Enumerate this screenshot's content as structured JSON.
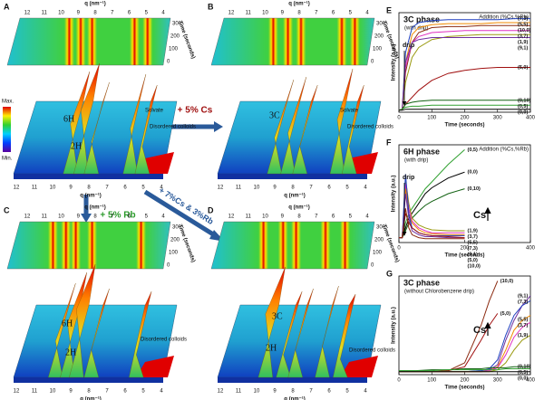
{
  "surface_panels": [
    {
      "label": "A",
      "x_label": "q (nm⁻¹)",
      "x_ticks": [
        "12",
        "11",
        "10",
        "9",
        "8",
        "7",
        "6",
        "5",
        "4"
      ],
      "time_label": "Time (seconds)",
      "time_ticks": [
        "300",
        "200",
        "100",
        "0"
      ],
      "annotations": [
        "6H",
        "2H",
        "Solvate",
        "Disordered colloids"
      ]
    },
    {
      "label": "B",
      "x_label": "q (nm⁻¹)",
      "x_ticks": [
        "12",
        "11",
        "10",
        "9",
        "8",
        "7",
        "6",
        "5",
        "4"
      ],
      "time_label": "Time (seconds)",
      "time_ticks": [
        "300",
        "200",
        "100",
        "0"
      ],
      "annotations": [
        "3C",
        "Solvate",
        "Disordered colloids"
      ]
    },
    {
      "label": "C",
      "x_label": "q (nm⁻¹)",
      "x_ticks": [
        "12",
        "11",
        "10",
        "9",
        "8",
        "7",
        "6",
        "5",
        "4"
      ],
      "time_label": "Time (seconds)",
      "time_ticks": [
        "300",
        "200",
        "100",
        "0"
      ],
      "annotations": [
        "6H",
        "2H",
        "Disordered colloids"
      ]
    },
    {
      "label": "D",
      "x_label": "q (nm⁻¹)",
      "x_ticks": [
        "12",
        "11",
        "10",
        "9",
        "8",
        "7",
        "6",
        "5",
        "4"
      ],
      "time_label": "Time (seconds)",
      "time_ticks": [
        "300",
        "200",
        "100",
        "0"
      ],
      "annotations": [
        "3C",
        "2H",
        "Disordered colloids"
      ]
    }
  ],
  "colorbar": {
    "max": "Max.",
    "min": "Min."
  },
  "transitions": [
    "+ 5% Cs",
    "+ 5% Rb",
    "+ 7%Cs & 3%Rb"
  ],
  "line_charts": [
    {
      "type": "line",
      "label": "E",
      "title": "3C phase",
      "subtitle": "(with drip)",
      "legend_title": "Addition (%Cs,%Rb)",
      "annotation": "drip",
      "x_label": "Time (seconds)",
      "y_label": "Intensity (a.u.)",
      "xlim": [
        0,
        400
      ],
      "xticks": [
        0,
        100,
        200,
        300,
        400
      ],
      "ylim": [
        0,
        1
      ],
      "x": [
        0,
        10,
        20,
        40,
        60,
        100,
        150,
        200,
        250,
        300,
        350,
        400
      ],
      "series": [
        {
          "name": "(7,3)",
          "color": "#1f3fbf",
          "values": [
            0.02,
            0.03,
            0.6,
            0.85,
            0.9,
            0.92,
            0.93,
            0.93,
            0.93,
            0.93,
            0.94,
            0.94
          ]
        },
        {
          "name": "(5,5)",
          "color": "#f08a00",
          "values": [
            0.02,
            0.03,
            0.5,
            0.78,
            0.85,
            0.88,
            0.89,
            0.89,
            0.89,
            0.9,
            0.9,
            0.9
          ]
        },
        {
          "name": "(10,0)",
          "color": "#8b2a10",
          "values": [
            0.02,
            0.03,
            0.4,
            0.7,
            0.8,
            0.85,
            0.86,
            0.86,
            0.87,
            0.87,
            0.87,
            0.87
          ]
        },
        {
          "name": "(3,7)",
          "color": "#e030c0",
          "values": [
            0.02,
            0.03,
            0.45,
            0.7,
            0.76,
            0.8,
            0.81,
            0.82,
            0.82,
            0.82,
            0.82,
            0.82
          ]
        },
        {
          "name": "(1,9)",
          "color": "#9a9a10",
          "values": [
            0.02,
            0.03,
            0.3,
            0.55,
            0.65,
            0.73,
            0.76,
            0.77,
            0.78,
            0.78,
            0.78,
            0.78
          ]
        },
        {
          "name": "(9,1)",
          "color": "#7030a0",
          "values": [
            0.02,
            0.03,
            0.5,
            0.7,
            0.73,
            0.75,
            0.75,
            0.75,
            0.75,
            0.75,
            0.75,
            0.75
          ]
        },
        {
          "name": "(5,0)",
          "color": "#a01010",
          "values": [
            0.02,
            0.03,
            0.08,
            0.15,
            0.22,
            0.32,
            0.39,
            0.42,
            0.44,
            0.45,
            0.45,
            0.45
          ]
        },
        {
          "name": "(0,10)",
          "color": "#106010",
          "values": [
            0.02,
            0.03,
            0.08,
            0.1,
            0.11,
            0.12,
            0.12,
            0.12,
            0.12,
            0.12,
            0.12,
            0.12
          ]
        },
        {
          "name": "(0,5)",
          "color": "#30a030",
          "values": [
            0.02,
            0.03,
            0.05,
            0.06,
            0.06,
            0.07,
            0.07,
            0.07,
            0.07,
            0.07,
            0.07,
            0.07
          ]
        },
        {
          "name": "(0,0)",
          "color": "#000000",
          "values": [
            0.02,
            0.02,
            0.03,
            0.03,
            0.03,
            0.03,
            0.03,
            0.03,
            0.03,
            0.03,
            0.03,
            0.03
          ]
        }
      ]
    },
    {
      "type": "line",
      "label": "F",
      "title": "6H phase",
      "subtitle": "(with drip)",
      "legend_title": "Addition (%Cs,%Rb)",
      "annotation": "drip",
      "arrow_label": "Cs",
      "x_label": "Time (seconds)",
      "y_label": "Intensity (a.u.)",
      "xlim": [
        0,
        400
      ],
      "xticks": [
        0,
        200,
        400
      ],
      "ylim": [
        0,
        1
      ],
      "x": [
        0,
        10,
        20,
        30,
        40,
        60,
        80,
        100,
        150,
        200
      ],
      "series": [
        {
          "name": "(0,5)",
          "color": "#30a030",
          "values": [
            0.05,
            0.05,
            0.2,
            0.3,
            0.35,
            0.45,
            0.55,
            0.62,
            0.8,
            0.95
          ]
        },
        {
          "name": "(0,0)",
          "color": "#000000",
          "values": [
            0.05,
            0.05,
            0.15,
            0.25,
            0.3,
            0.4,
            0.5,
            0.56,
            0.66,
            0.72
          ]
        },
        {
          "name": "(0,10)",
          "color": "#106010",
          "values": [
            0.05,
            0.05,
            0.12,
            0.2,
            0.25,
            0.32,
            0.38,
            0.42,
            0.5,
            0.55
          ]
        },
        {
          "name": "(1,9)",
          "color": "#9a9a10",
          "values": [
            0.05,
            0.05,
            0.65,
            0.4,
            0.25,
            0.18,
            0.15,
            0.13,
            0.12,
            0.12
          ]
        },
        {
          "name": "(3,7)",
          "color": "#e030c0",
          "values": [
            0.05,
            0.05,
            0.6,
            0.35,
            0.22,
            0.15,
            0.12,
            0.1,
            0.1,
            0.1
          ]
        },
        {
          "name": "(5,5)",
          "color": "#f08a00",
          "values": [
            0.05,
            0.05,
            0.55,
            0.3,
            0.2,
            0.13,
            0.1,
            0.09,
            0.08,
            0.08
          ]
        },
        {
          "name": "(7,3)",
          "color": "#1f3fbf",
          "values": [
            0.05,
            0.05,
            0.7,
            0.3,
            0.15,
            0.1,
            0.08,
            0.07,
            0.07,
            0.07
          ]
        },
        {
          "name": "(9,1)",
          "color": "#7030a0",
          "values": [
            0.05,
            0.05,
            0.5,
            0.25,
            0.12,
            0.08,
            0.06,
            0.06,
            0.05,
            0.05
          ]
        },
        {
          "name": "(5,0)",
          "color": "#a01010",
          "values": [
            0.05,
            0.05,
            0.3,
            0.2,
            0.15,
            0.1,
            0.08,
            0.07,
            0.06,
            0.05
          ]
        },
        {
          "name": "(10,0)",
          "color": "#8b2a10",
          "values": [
            0.05,
            0.05,
            0.35,
            0.15,
            0.08,
            0.05,
            0.04,
            0.04,
            0.04,
            0.04
          ]
        }
      ]
    },
    {
      "type": "line",
      "label": "G",
      "title": "3C phase",
      "subtitle": "(without Chlorobenzene drip)",
      "arrow_label": "Cs",
      "x_label": "Time (seconds)",
      "y_label": "Intensity (a.u.)",
      "xlim": [
        0,
        400
      ],
      "xticks": [
        0,
        100,
        200,
        300,
        400
      ],
      "ylim": [
        0,
        1
      ],
      "x": [
        0,
        50,
        100,
        150,
        200,
        250,
        275,
        300,
        325,
        350,
        375,
        400
      ],
      "series": [
        {
          "name": "(10,0)",
          "color": "#8b2a10",
          "values": [
            0.03,
            0.03,
            0.03,
            0.04,
            0.12,
            0.5,
            0.75,
            0.95,
            null,
            null,
            null,
            null
          ]
        },
        {
          "name": "(5,0)",
          "color": "#a01010",
          "values": [
            0.03,
            0.03,
            0.03,
            0.04,
            0.08,
            0.35,
            0.5,
            0.62,
            null,
            null,
            null,
            null
          ]
        },
        {
          "name": "(9,1)",
          "color": "#7030a0",
          "values": [
            0.03,
            0.03,
            0.03,
            0.03,
            0.03,
            0.04,
            0.05,
            0.1,
            0.35,
            0.55,
            0.7,
            0.8
          ]
        },
        {
          "name": "(7,3)",
          "color": "#1f3fbf",
          "values": [
            0.03,
            0.03,
            0.03,
            0.03,
            0.03,
            0.04,
            0.06,
            0.15,
            0.4,
            0.6,
            0.7,
            0.75
          ]
        },
        {
          "name": "(5,5)",
          "color": "#f08a00",
          "values": [
            0.03,
            0.03,
            0.03,
            0.03,
            0.03,
            0.03,
            0.04,
            0.08,
            0.25,
            0.45,
            0.55,
            0.6
          ]
        },
        {
          "name": "(3,7)",
          "color": "#e030c0",
          "values": [
            0.03,
            0.03,
            0.03,
            0.03,
            0.03,
            0.03,
            0.04,
            0.07,
            0.2,
            0.38,
            0.48,
            0.53
          ]
        },
        {
          "name": "(1,9)",
          "color": "#9a9a10",
          "values": [
            0.03,
            0.03,
            0.03,
            0.03,
            0.03,
            0.03,
            0.03,
            0.05,
            0.12,
            0.25,
            0.35,
            0.4
          ]
        },
        {
          "name": "(0,10)",
          "color": "#106010",
          "values": [
            0.04,
            0.04,
            0.05,
            0.05,
            0.06,
            0.06,
            0.07,
            0.07,
            0.07,
            0.08,
            0.08,
            0.08
          ]
        },
        {
          "name": "(0,5)",
          "color": "#30a030",
          "values": [
            0.04,
            0.04,
            0.04,
            0.05,
            0.05,
            0.05,
            0.05,
            0.05,
            0.06,
            0.06,
            0.06,
            0.06
          ]
        },
        {
          "name": "(0,0)",
          "color": "#000000",
          "values": [
            0.03,
            0.03,
            0.03,
            0.03,
            0.03,
            0.03,
            0.03,
            0.03,
            0.03,
            0.03,
            0.03,
            0.03
          ]
        }
      ]
    }
  ]
}
